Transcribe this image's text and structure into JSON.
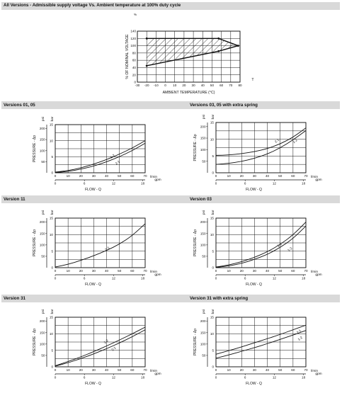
{
  "chart_data": [
    {
      "id": "ambient",
      "type": "area",
      "title": "All Versions - Admissible supply voltage Vs. Ambient temperature at 100% duty cycle",
      "xlabel": "AMBIENT TEMPERATURE (°C)",
      "ylabel": "% OF NOMINAL VOLTAGE",
      "x_unit": "T",
      "y_unit": "%",
      "xlim": [
        -30,
        80
      ],
      "ylim": [
        0,
        140
      ],
      "x_ticks": [
        "-30",
        "-20",
        "-10",
        "0",
        "10",
        "20",
        "30",
        "40",
        "50",
        "60",
        "70",
        "80"
      ],
      "y_ticks": [
        "0",
        "20",
        "40",
        "60",
        "80",
        "100",
        "120",
        "140"
      ],
      "polygon": [
        [
          -20,
          45
        ],
        [
          -20,
          120
        ],
        [
          57,
          120
        ],
        [
          78,
          100
        ],
        [
          57,
          85
        ]
      ],
      "upper_boundary": [
        [
          -20,
          120
        ],
        [
          57,
          120
        ],
        [
          78,
          100
        ]
      ],
      "lower_boundary": [
        [
          -20,
          45
        ],
        [
          57,
          85
        ],
        [
          78,
          100
        ]
      ],
      "grid": true,
      "hatched": true
    },
    {
      "id": "v0105",
      "type": "line",
      "title": "Versions 01, 05",
      "xlabel": "FLOW - Q",
      "ylabel": "PRESSURE - Δp",
      "x_unit_top": "l/min",
      "x_unit_bottom": "gpm",
      "y_unit_left": "psi",
      "y_unit_right": "bar",
      "xlim": [
        0,
        70
      ],
      "ylim": [
        0,
        15
      ],
      "x_ticks": [
        "0",
        "10",
        "20",
        "30",
        "40",
        "50",
        "60",
        "70"
      ],
      "x_ticks_gpm": [
        {
          "v": 0,
          "label": "0"
        },
        {
          "v": 6,
          "label": "6"
        },
        {
          "v": 12,
          "label": "12"
        },
        {
          "v": 18,
          "label": "18"
        }
      ],
      "y_ticks_bar": [
        "0",
        "5",
        "10",
        "15"
      ],
      "y_ticks_psi": [
        {
          "v": 50,
          "label": "50"
        },
        {
          "v": 100,
          "label": "100"
        },
        {
          "v": 150,
          "label": "150"
        },
        {
          "v": 200,
          "label": "200"
        }
      ],
      "grid": true,
      "series": [
        {
          "name": "1-2",
          "x": [
            0,
            10,
            20,
            30,
            40,
            50,
            60,
            70
          ],
          "y": [
            0.2,
            0.7,
            1.5,
            2.7,
            4.1,
            5.8,
            7.7,
            10.0
          ],
          "label_at": [
            45,
            4.9
          ]
        },
        {
          "name": "2-1",
          "x": [
            0,
            10,
            20,
            30,
            40,
            50,
            60,
            70
          ],
          "y": [
            0.1,
            0.4,
            1.1,
            2.1,
            3.4,
            5.0,
            6.9,
            9.2
          ],
          "label_at": [
            49,
            2.9
          ]
        }
      ]
    },
    {
      "id": "v0305s",
      "type": "line",
      "title": "Versions 03, 05 with extra spring",
      "xlabel": "FLOW - Q",
      "ylabel": "PRESSURE - Δp",
      "x_unit_top": "l/min",
      "x_unit_bottom": "gpm",
      "y_unit_left": "psi",
      "y_unit_right": "bar",
      "xlim": [
        0,
        70
      ],
      "ylim": [
        0,
        15
      ],
      "x_ticks": [
        "0",
        "10",
        "20",
        "30",
        "40",
        "50",
        "60",
        "70"
      ],
      "x_ticks_gpm": [
        {
          "v": 0,
          "label": "0"
        },
        {
          "v": 6,
          "label": "6"
        },
        {
          "v": 12,
          "label": "12"
        },
        {
          "v": 18,
          "label": "18"
        }
      ],
      "y_ticks_bar": [
        "0",
        "5",
        "10",
        "15"
      ],
      "y_ticks_psi": [
        {
          "v": 50,
          "label": "50"
        },
        {
          "v": 100,
          "label": "100"
        },
        {
          "v": 150,
          "label": "150"
        },
        {
          "v": 200,
          "label": "200"
        }
      ],
      "grid": true,
      "series": [
        {
          "name": "2-1",
          "x": [
            0,
            10,
            20,
            30,
            40,
            50,
            60,
            70
          ],
          "y": [
            5.2,
            5.3,
            5.7,
            6.3,
            7.2,
            8.6,
            10.6,
            13.4
          ],
          "label_at": [
            48,
            9.3
          ]
        },
        {
          "name": "1-2",
          "x": [
            0,
            10,
            20,
            30,
            40,
            50,
            60,
            70
          ],
          "y": [
            2.5,
            2.8,
            3.4,
            4.3,
            5.6,
            7.4,
            9.8,
            12.6
          ],
          "label_at": [
            62,
            9.2
          ]
        }
      ]
    },
    {
      "id": "v11",
      "type": "line",
      "title": "Version 11",
      "xlabel": "FLOW - Q",
      "ylabel": "PRESSURE - Δp",
      "x_unit_top": "l/min",
      "x_unit_bottom": "gpm",
      "y_unit_left": "psi",
      "y_unit_right": "bar",
      "xlim": [
        0,
        70
      ],
      "ylim": [
        0,
        15
      ],
      "x_ticks": [
        "0",
        "10",
        "20",
        "30",
        "40",
        "50",
        "60",
        "70"
      ],
      "x_ticks_gpm": [
        {
          "v": 0,
          "label": "0"
        },
        {
          "v": 6,
          "label": "6"
        },
        {
          "v": 12,
          "label": "12"
        },
        {
          "v": 18,
          "label": "18"
        }
      ],
      "y_ticks_bar": [
        "0",
        "5",
        "10",
        "15"
      ],
      "y_ticks_psi": [
        {
          "v": 50,
          "label": "50"
        },
        {
          "v": 100,
          "label": "100"
        },
        {
          "v": 150,
          "label": "150"
        },
        {
          "v": 200,
          "label": "200"
        }
      ],
      "grid": true,
      "series": [
        {
          "name": "2-1",
          "x": [
            0,
            10,
            20,
            30,
            40,
            50,
            60,
            70
          ],
          "y": [
            0.2,
            1.0,
            2.2,
            3.6,
            5.2,
            7.1,
            9.7,
            13.3
          ],
          "label_at": [
            41,
            5.5
          ]
        }
      ]
    },
    {
      "id": "v03",
      "type": "line",
      "title": "Version 03",
      "xlabel": "FLOW - Q",
      "ylabel": "PRESSURE - Δp",
      "x_unit_top": "l/min",
      "x_unit_bottom": "gpm",
      "y_unit_left": "psi",
      "y_unit_right": "bar",
      "xlim": [
        0,
        70
      ],
      "ylim": [
        0,
        15
      ],
      "x_ticks": [
        "0",
        "10",
        "20",
        "30",
        "40",
        "50",
        "60",
        "70"
      ],
      "x_ticks_gpm": [
        {
          "v": 0,
          "label": "0"
        },
        {
          "v": 6,
          "label": "6"
        },
        {
          "v": 12,
          "label": "12"
        },
        {
          "v": 18,
          "label": "18"
        }
      ],
      "y_ticks_bar": [
        "0",
        "5",
        "10",
        "15"
      ],
      "y_ticks_psi": [
        {
          "v": 50,
          "label": "50"
        },
        {
          "v": 100,
          "label": "100"
        },
        {
          "v": 150,
          "label": "150"
        },
        {
          "v": 200,
          "label": "200"
        }
      ],
      "grid": true,
      "series": [
        {
          "name": "2-1",
          "x": [
            0,
            10,
            20,
            30,
            40,
            50,
            60,
            70
          ],
          "y": [
            0.2,
            0.8,
            1.8,
            3.1,
            4.8,
            7.0,
            9.9,
            13.8
          ],
          "label_at": [
            50,
            6.6
          ]
        },
        {
          "name": "1-2",
          "x": [
            0,
            10,
            20,
            30,
            40,
            50,
            60,
            70
          ],
          "y": [
            0.1,
            0.5,
            1.3,
            2.5,
            4.0,
            6.1,
            8.8,
            12.6
          ],
          "label_at": [
            58,
            5.3
          ]
        }
      ]
    },
    {
      "id": "v31",
      "type": "line",
      "title": "Version 31",
      "xlabel": "FLOW - Q",
      "ylabel": "PRESSURE - Δp",
      "x_unit_top": "l/min",
      "x_unit_bottom": "gpm",
      "y_unit_left": "psi",
      "y_unit_right": "bar",
      "xlim": [
        0,
        70
      ],
      "ylim": [
        0,
        15
      ],
      "x_ticks": [
        "0",
        "10",
        "20",
        "30",
        "40",
        "50",
        "60",
        "70"
      ],
      "x_ticks_gpm": [
        {
          "v": 0,
          "label": "0"
        },
        {
          "v": 6,
          "label": "6"
        },
        {
          "v": 12,
          "label": "12"
        },
        {
          "v": 18,
          "label": "18"
        }
      ],
      "y_ticks_bar": [
        "0",
        "5",
        "10",
        "15"
      ],
      "y_ticks_psi": [
        {
          "v": 50,
          "label": "50"
        },
        {
          "v": 100,
          "label": "100"
        },
        {
          "v": 150,
          "label": "150"
        },
        {
          "v": 200,
          "label": "200"
        }
      ],
      "grid": true,
      "series": [
        {
          "name": "1-2",
          "x": [
            0,
            10,
            20,
            30,
            40,
            50,
            60,
            70
          ],
          "y": [
            0.3,
            1.6,
            3.0,
            4.6,
            6.3,
            8.1,
            10.0,
            12.0
          ],
          "label_at": [
            40,
            7.4
          ]
        },
        {
          "name": "2-1",
          "x": [
            0,
            10,
            20,
            30,
            40,
            50,
            60,
            70
          ],
          "y": [
            0.2,
            1.2,
            2.5,
            3.9,
            5.5,
            7.2,
            9.1,
            11.2
          ],
          "label_at": [
            46,
            5.2
          ]
        }
      ]
    },
    {
      "id": "v31s",
      "type": "line",
      "title": "Version 31 with extra spring",
      "xlabel": "FLOW - Q",
      "ylabel": "PRESSURE - Δp",
      "x_unit_top": "l/min",
      "x_unit_bottom": "gpm",
      "y_unit_left": "psi",
      "y_unit_right": "bar",
      "xlim": [
        0,
        70
      ],
      "ylim": [
        0,
        15
      ],
      "x_ticks": [
        "0",
        "10",
        "20",
        "30",
        "40",
        "50",
        "60",
        "70"
      ],
      "x_ticks_gpm": [
        {
          "v": 0,
          "label": "0"
        },
        {
          "v": 6,
          "label": "6"
        },
        {
          "v": 12,
          "label": "12"
        },
        {
          "v": 18,
          "label": "18"
        }
      ],
      "y_ticks_bar": [
        "0",
        "5",
        "10",
        "15"
      ],
      "y_ticks_psi": [
        {
          "v": 50,
          "label": "50"
        },
        {
          "v": 100,
          "label": "100"
        },
        {
          "v": 150,
          "label": "150"
        },
        {
          "v": 200,
          "label": "200"
        }
      ],
      "grid": true,
      "series": [
        {
          "name": "2-1",
          "x": [
            0,
            10,
            20,
            30,
            40,
            50,
            60,
            70
          ],
          "y": [
            3.8,
            4.9,
            6.0,
            7.3,
            8.5,
            9.8,
            11.2,
            12.6
          ],
          "label_at": [
            65,
            10.4
          ]
        },
        {
          "name": "1-2",
          "x": [
            0,
            10,
            20,
            30,
            40,
            50,
            60,
            70
          ],
          "y": [
            2.6,
            3.6,
            4.7,
            5.8,
            7.0,
            8.3,
            9.6,
            11.0
          ],
          "label_at": [
            66,
            8.3
          ]
        }
      ]
    }
  ],
  "sections": {
    "row1": "Versions 01, 05",
    "row1b": "Versions 03, 05 with extra spring",
    "row2": "Version 11",
    "row2b": "Version 03",
    "row3": "Version 31",
    "row3b": "Version 31 with extra spring"
  },
  "top_title": "All Versions - Admissible supply voltage Vs. Ambient temperature at 100% duty cycle"
}
